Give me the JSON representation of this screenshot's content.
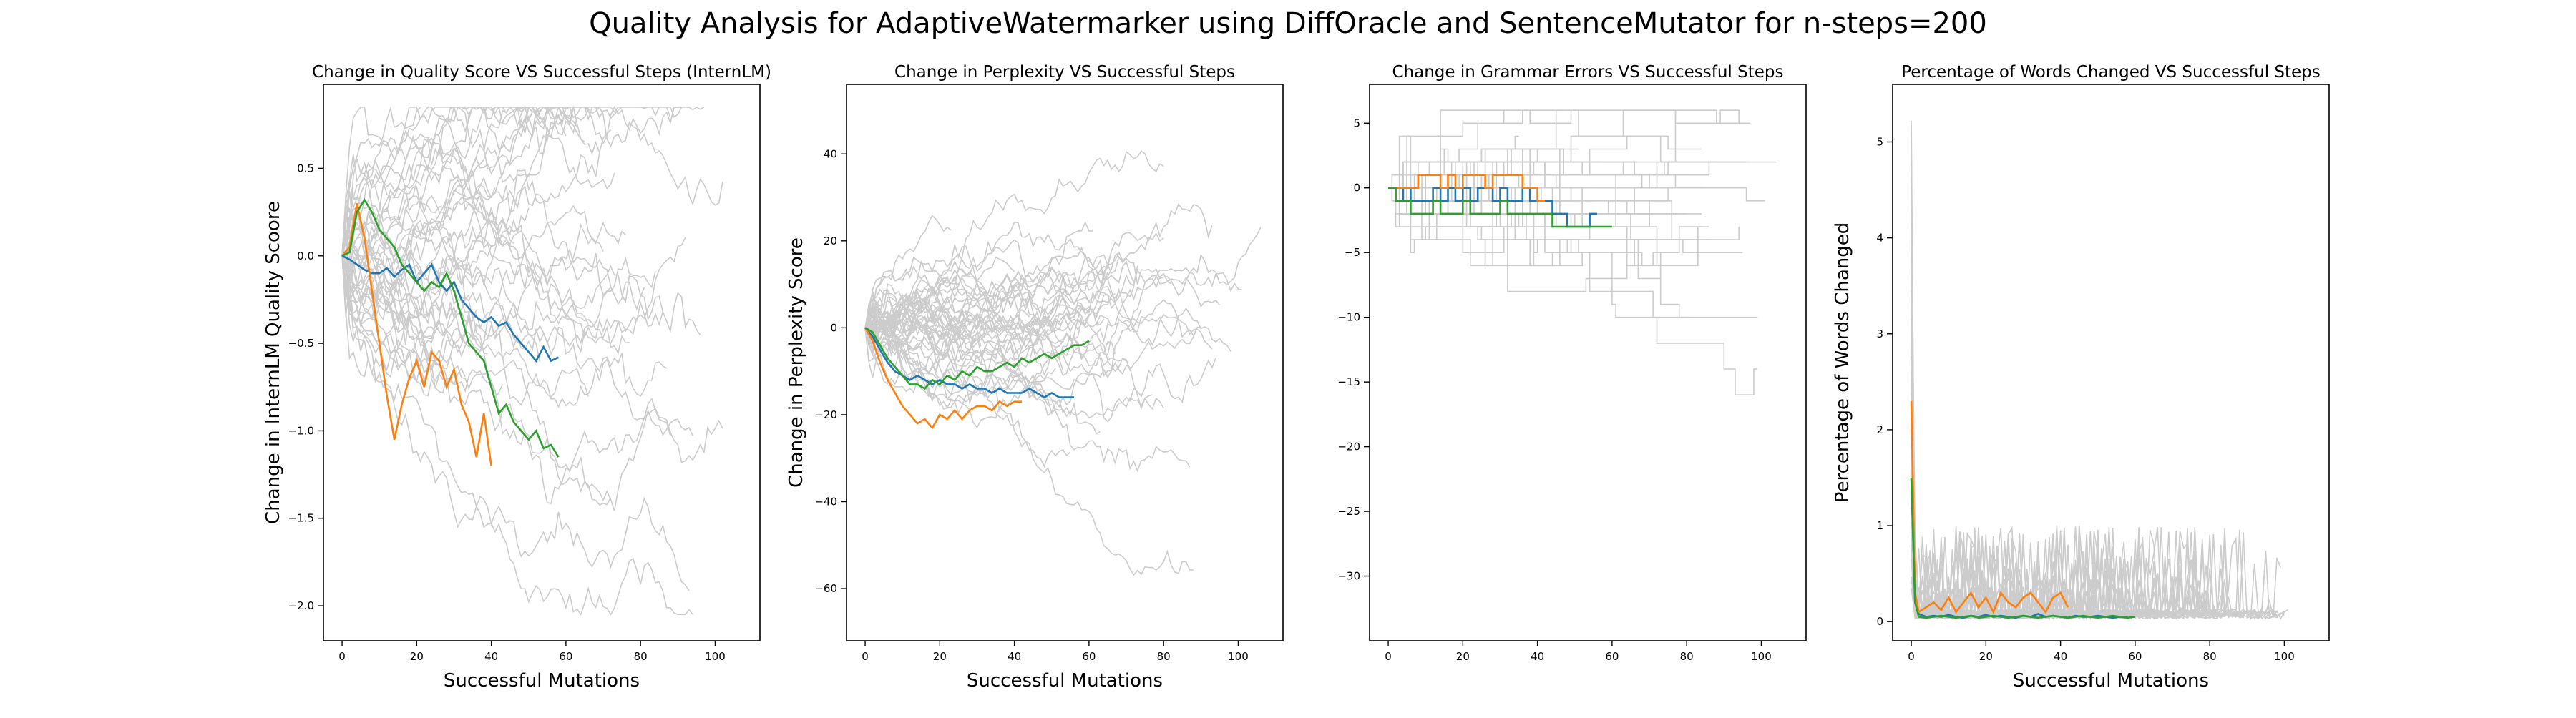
{
  "figure": {
    "suptitle": "Quality Analysis for AdaptiveWatermarker using DiffOracle and SentenceMutator for n-steps=200"
  },
  "chart_data": [
    {
      "type": "line",
      "title": "Change in Quality Score VS Successful Steps (InternLM)",
      "xlabel": "Successful Mutations",
      "ylabel": "Change in InternLM Quality Scoore",
      "xlim": [
        -5,
        112
      ],
      "ylim": [
        -2.2,
        0.98
      ],
      "xticks": [
        0,
        20,
        40,
        60,
        80,
        100
      ],
      "xtick_labels": [
        "0",
        "20",
        "40",
        "60",
        "80",
        "100"
      ],
      "yticks": [
        -2.0,
        -1.5,
        -1.0,
        -0.5,
        0.0,
        0.5
      ],
      "ytick_labels": [
        "−2.0",
        "−1.5",
        "−1.0",
        "−0.5",
        "0.0",
        "0.5"
      ],
      "background_colour": "#cccccc",
      "background_count": 45,
      "background_shape": {
        "init_sd": 0.15,
        "step_sd": 0.055,
        "max_len": 106,
        "min_len": 14,
        "drift_sd": 0.012,
        "floor": -2.05,
        "ceil": 0.85,
        "seed": 11
      },
      "series": [
        {
          "colour": "#1f77b4",
          "x": [
            0,
            2,
            4,
            6,
            8,
            10,
            12,
            14,
            16,
            18,
            20,
            22,
            24,
            26,
            28,
            30,
            32,
            34,
            36,
            38,
            40,
            42,
            44,
            46,
            48,
            50,
            52,
            54,
            56,
            58
          ],
          "y": [
            0.0,
            -0.02,
            -0.05,
            -0.08,
            -0.1,
            -0.1,
            -0.07,
            -0.12,
            -0.08,
            -0.05,
            -0.15,
            -0.1,
            -0.05,
            -0.15,
            -0.2,
            -0.15,
            -0.25,
            -0.3,
            -0.35,
            -0.38,
            -0.35,
            -0.4,
            -0.38,
            -0.45,
            -0.5,
            -0.55,
            -0.6,
            -0.52,
            -0.6,
            -0.58
          ]
        },
        {
          "colour": "#ff7f0e",
          "x": [
            0,
            2,
            4,
            6,
            8,
            10,
            12,
            14,
            16,
            18,
            20,
            22,
            24,
            26,
            28,
            30,
            32,
            34,
            36,
            38,
            40
          ],
          "y": [
            0.0,
            0.05,
            0.3,
            0.1,
            -0.2,
            -0.5,
            -0.8,
            -1.05,
            -0.85,
            -0.7,
            -0.6,
            -0.75,
            -0.55,
            -0.6,
            -0.75,
            -0.65,
            -0.85,
            -0.95,
            -1.15,
            -0.9,
            -1.2
          ]
        },
        {
          "colour": "#2ca02c",
          "x": [
            0,
            2,
            4,
            6,
            8,
            10,
            12,
            14,
            16,
            18,
            20,
            22,
            24,
            26,
            28,
            30,
            32,
            34,
            36,
            38,
            40,
            42,
            44,
            46,
            48,
            50,
            52,
            54,
            56,
            58
          ],
          "y": [
            0.0,
            0.02,
            0.25,
            0.32,
            0.25,
            0.15,
            0.1,
            0.05,
            -0.05,
            -0.1,
            -0.15,
            -0.2,
            -0.15,
            -0.18,
            -0.1,
            -0.2,
            -0.35,
            -0.5,
            -0.55,
            -0.6,
            -0.75,
            -0.9,
            -0.85,
            -0.95,
            -1.0,
            -1.05,
            -1.0,
            -1.1,
            -1.08,
            -1.15
          ]
        }
      ]
    },
    {
      "type": "line",
      "title": "Change in Perplexity VS Successful Steps",
      "xlabel": "Successful Mutations",
      "ylabel": "Change in Perplexity Score",
      "xlim": [
        -5,
        112
      ],
      "ylim": [
        -72,
        56
      ],
      "xticks": [
        0,
        20,
        40,
        60,
        80,
        100
      ],
      "xtick_labels": [
        "0",
        "20",
        "40",
        "60",
        "80",
        "100"
      ],
      "yticks": [
        -60,
        -40,
        -20,
        0,
        20,
        40
      ],
      "ytick_labels": [
        "−60",
        "−40",
        "−20",
        "0",
        "20",
        "40"
      ],
      "background_colour": "#cccccc",
      "background_count": 45,
      "background_shape": {
        "init_sd": 2.5,
        "step_sd": 1.6,
        "max_len": 106,
        "min_len": 14,
        "drift_sd": 0.06,
        "floor": -66,
        "ceil": 52,
        "seed": 23
      },
      "series": [
        {
          "colour": "#1f77b4",
          "x": [
            0,
            2,
            4,
            6,
            8,
            10,
            12,
            14,
            16,
            18,
            20,
            22,
            24,
            26,
            28,
            30,
            32,
            34,
            36,
            38,
            40,
            42,
            44,
            46,
            48,
            50,
            52,
            54,
            56
          ],
          "y": [
            0,
            -2,
            -5,
            -8,
            -10,
            -11,
            -12,
            -11,
            -12,
            -13,
            -12,
            -13,
            -13,
            -14,
            -13,
            -14,
            -14,
            -15,
            -14,
            -15,
            -15,
            -15,
            -14,
            -15,
            -16,
            -15,
            -16,
            -16,
            -16
          ]
        },
        {
          "colour": "#ff7f0e",
          "x": [
            0,
            2,
            4,
            6,
            8,
            10,
            12,
            14,
            16,
            18,
            20,
            22,
            24,
            26,
            28,
            30,
            32,
            34,
            36,
            38,
            40,
            42
          ],
          "y": [
            0,
            -3,
            -8,
            -12,
            -15,
            -18,
            -20,
            -22,
            -21,
            -23,
            -20,
            -21,
            -19,
            -21,
            -19,
            -18,
            -18,
            -19,
            -17,
            -18,
            -17,
            -17
          ]
        },
        {
          "colour": "#2ca02c",
          "x": [
            0,
            2,
            4,
            6,
            8,
            10,
            12,
            14,
            16,
            18,
            20,
            22,
            24,
            26,
            28,
            30,
            32,
            34,
            36,
            38,
            40,
            42,
            44,
            46,
            48,
            50,
            52,
            54,
            56,
            58,
            60
          ],
          "y": [
            0,
            -1,
            -4,
            -7,
            -9,
            -11,
            -13,
            -13,
            -14,
            -12,
            -13,
            -11,
            -12,
            -10,
            -11,
            -9,
            -10,
            -10,
            -9,
            -8,
            -9,
            -7,
            -8,
            -7,
            -6,
            -7,
            -6,
            -5,
            -4,
            -4,
            -3
          ]
        }
      ]
    },
    {
      "type": "line",
      "step": true,
      "title": "Change in Grammar Errors VS Successful Steps",
      "xlabel": "",
      "ylabel": "",
      "xlim": [
        -5,
        112
      ],
      "ylim": [
        -35,
        8
      ],
      "xticks": [
        0,
        20,
        40,
        60,
        80,
        100
      ],
      "xtick_labels": [
        "0",
        "20",
        "40",
        "60",
        "80",
        "100"
      ],
      "yticks": [
        -30,
        -25,
        -20,
        -15,
        -10,
        -5,
        0,
        5
      ],
      "ytick_labels": [
        "−30",
        "−25",
        "−20",
        "−15",
        "−10",
        "−5",
        "0",
        "5"
      ],
      "background_colour": "#cccccc",
      "background_count": 45,
      "background_shape": {
        "init_sd": 0.6,
        "step_sd": 0.0,
        "jump_prob": 0.1,
        "jump_size": 1.5,
        "max_len": 106,
        "min_len": 14,
        "drift_sd": 0.0,
        "floor": -33,
        "ceil": 6,
        "seed": 37
      },
      "series": [
        {
          "colour": "#1f77b4",
          "x": [
            0,
            2,
            4,
            6,
            8,
            10,
            12,
            14,
            16,
            18,
            20,
            22,
            24,
            26,
            28,
            30,
            32,
            34,
            36,
            38,
            40,
            42,
            44,
            46,
            48,
            50,
            52,
            54,
            56
          ],
          "y": [
            0,
            -1,
            0,
            -1,
            -1,
            -1,
            0,
            -1,
            0,
            -1,
            0,
            -1,
            0,
            0,
            -1,
            0,
            -1,
            -1,
            0,
            -1,
            -1,
            -1,
            -2,
            -2,
            -3,
            -3,
            -3,
            -2,
            -2
          ]
        },
        {
          "colour": "#ff7f0e",
          "x": [
            0,
            2,
            4,
            6,
            8,
            10,
            12,
            14,
            16,
            18,
            20,
            22,
            24,
            26,
            28,
            30,
            32,
            34,
            36,
            38,
            40,
            42
          ],
          "y": [
            0,
            0,
            0,
            0,
            1,
            1,
            1,
            0,
            1,
            0,
            1,
            1,
            1,
            0,
            1,
            1,
            1,
            1,
            0,
            0,
            -1,
            -1
          ]
        },
        {
          "colour": "#2ca02c",
          "x": [
            0,
            2,
            4,
            6,
            8,
            10,
            12,
            14,
            16,
            18,
            20,
            22,
            24,
            26,
            28,
            30,
            32,
            34,
            36,
            38,
            40,
            42,
            44,
            46,
            48,
            50,
            52,
            54,
            56,
            58,
            60
          ],
          "y": [
            0,
            -1,
            -1,
            -2,
            -2,
            -2,
            -1,
            -2,
            -2,
            -2,
            -1,
            -2,
            -2,
            -2,
            -2,
            -1,
            -2,
            -2,
            -2,
            -2,
            -2,
            -2,
            -3,
            -3,
            -3,
            -3,
            -3,
            -3,
            -3,
            -3,
            -3
          ]
        }
      ]
    },
    {
      "type": "line",
      "title": "Percentage of Words Changed VS Successful Steps",
      "xlabel": "Successful Mutations",
      "ylabel": "Percentage of Words Changed",
      "xlim": [
        -5,
        112
      ],
      "ylim": [
        -0.2,
        5.6
      ],
      "xticks": [
        0,
        20,
        40,
        60,
        80,
        100
      ],
      "xtick_labels": [
        "0",
        "20",
        "40",
        "60",
        "80",
        "100"
      ],
      "yticks": [
        0,
        1,
        2,
        3,
        4,
        5
      ],
      "ytick_labels": [
        "0",
        "1",
        "2",
        "3",
        "4",
        "5"
      ],
      "background_colour": "#cccccc",
      "background_count": 45,
      "background_shape": {
        "mode": "spiky",
        "base": 0.1,
        "spike_prob": 0.15,
        "spike_max": 0.9,
        "first_max": 5.4,
        "max_len": 106,
        "min_len": 14,
        "seed": 53
      },
      "series": [
        {
          "colour": "#1f77b4",
          "x": [
            0,
            1,
            2,
            4,
            6,
            8,
            10,
            12,
            14,
            16,
            18,
            20,
            22,
            24,
            26,
            28,
            30,
            32,
            34,
            36,
            38,
            40,
            42,
            44,
            46,
            48,
            50,
            52,
            54,
            56,
            58
          ],
          "y": [
            1.5,
            0.2,
            0.08,
            0.05,
            0.06,
            0.05,
            0.07,
            0.05,
            0.04,
            0.06,
            0.05,
            0.07,
            0.05,
            0.06,
            0.05,
            0.04,
            0.06,
            0.05,
            0.08,
            0.05,
            0.06,
            0.05,
            0.04,
            0.06,
            0.05,
            0.05,
            0.06,
            0.05,
            0.04,
            0.05,
            0.05
          ]
        },
        {
          "colour": "#ff7f0e",
          "x": [
            0,
            1,
            2,
            4,
            6,
            8,
            10,
            12,
            14,
            16,
            18,
            20,
            22,
            24,
            26,
            28,
            30,
            32,
            34,
            36,
            38,
            40,
            42
          ],
          "y": [
            2.3,
            0.3,
            0.1,
            0.15,
            0.2,
            0.12,
            0.25,
            0.1,
            0.2,
            0.3,
            0.15,
            0.25,
            0.1,
            0.3,
            0.2,
            0.15,
            0.25,
            0.3,
            0.2,
            0.1,
            0.25,
            0.3,
            0.15
          ]
        },
        {
          "colour": "#2ca02c",
          "x": [
            0,
            1,
            2,
            4,
            6,
            8,
            10,
            12,
            14,
            16,
            18,
            20,
            22,
            24,
            26,
            28,
            30,
            32,
            34,
            36,
            38,
            40,
            42,
            44,
            46,
            48,
            50,
            52,
            54,
            56,
            58,
            60
          ],
          "y": [
            1.5,
            0.2,
            0.05,
            0.04,
            0.05,
            0.06,
            0.05,
            0.04,
            0.05,
            0.06,
            0.04,
            0.05,
            0.06,
            0.05,
            0.04,
            0.05,
            0.06,
            0.05,
            0.04,
            0.05,
            0.06,
            0.05,
            0.04,
            0.05,
            0.06,
            0.05,
            0.04,
            0.05,
            0.06,
            0.05,
            0.04,
            0.05
          ]
        }
      ]
    }
  ]
}
